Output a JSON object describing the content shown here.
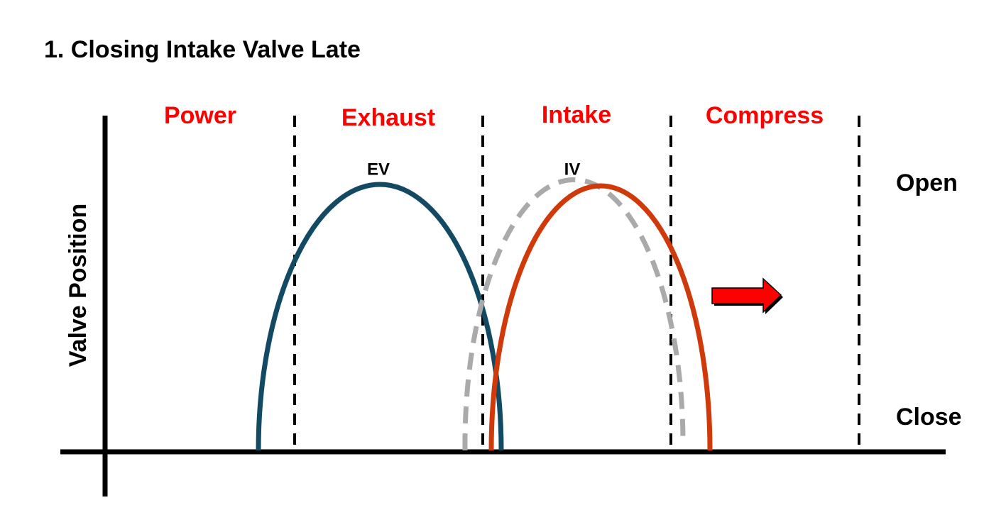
{
  "title": "1. Closing Intake Valve Late",
  "strokes": [
    "Power",
    "Exhaust",
    "Intake",
    "Compress"
  ],
  "curves": [
    "EV",
    "IV"
  ],
  "axis": {
    "y_label": "Valve Position",
    "open": "Open",
    "close": "Close"
  }
}
